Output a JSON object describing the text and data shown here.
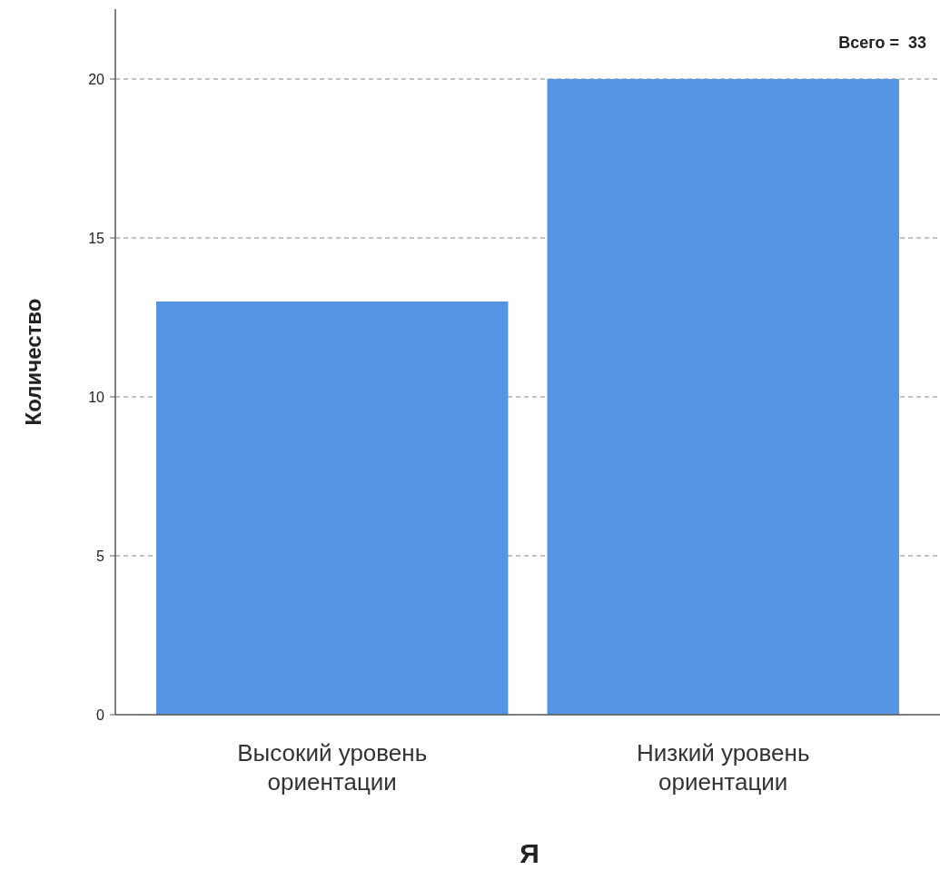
{
  "chart_data": {
    "type": "bar",
    "categories": [
      "Высокий уровень ориентации",
      "Низкий уровень ориентации"
    ],
    "values": [
      13,
      20
    ],
    "color": "#5595e3",
    "xlabel": "Я",
    "ylabel": "Количество",
    "ylim": [
      0,
      22.2
    ],
    "yticks": [
      0,
      5,
      10,
      15,
      20
    ],
    "grid": "y",
    "annotations": [
      "Всего =  33"
    ]
  }
}
